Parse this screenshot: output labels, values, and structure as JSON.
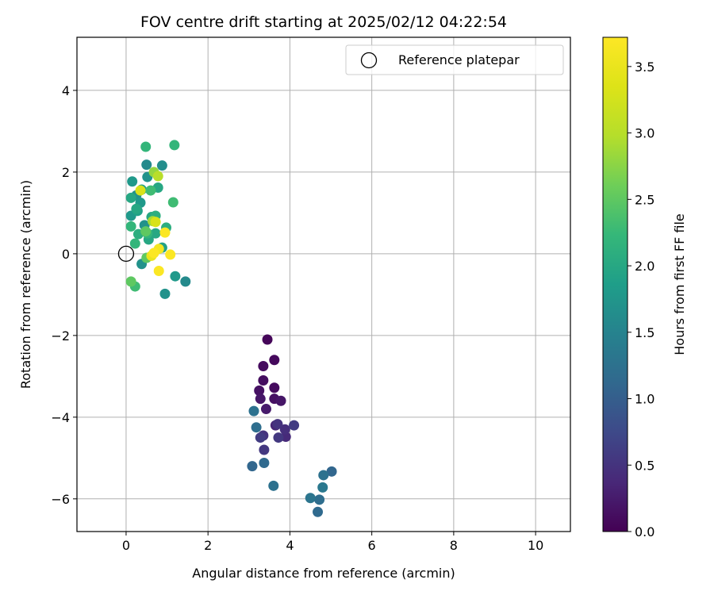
{
  "chart_data": {
    "type": "scatter",
    "title": "FOV centre drift starting at 2025/02/12 04:22:54",
    "xlabel": "Angular distance from reference (arcmin)",
    "ylabel": "Rotation from reference (arcmin)",
    "xlim": [
      -1.2,
      10.85
    ],
    "ylim": [
      -6.8,
      5.3
    ],
    "xticks": [
      0,
      2,
      4,
      6,
      8,
      10
    ],
    "yticks": [
      -6,
      -4,
      -2,
      0,
      2,
      4
    ],
    "xtick_labels": [
      "0",
      "2",
      "4",
      "6",
      "8",
      "10"
    ],
    "ytick_labels": [
      "−6",
      "−4",
      "−2",
      "0",
      "2",
      "4"
    ],
    "grid": true,
    "legend": {
      "position": "upper-right",
      "label": "Reference platepar"
    },
    "reference_point": {
      "x": 0,
      "y": 0
    },
    "colorbar": {
      "label": "Hours from first FF file",
      "colormap": "viridis",
      "range": [
        0,
        3.72
      ],
      "ticks": [
        0.0,
        0.5,
        1.0,
        1.5,
        2.0,
        2.5,
        3.0,
        3.5
      ],
      "tick_labels": [
        "0.0",
        "0.5",
        "1.0",
        "1.5",
        "2.0",
        "2.5",
        "3.0",
        "3.5"
      ]
    },
    "points": [
      {
        "x": 3.45,
        "y": -2.1,
        "c": 0.05
      },
      {
        "x": 3.62,
        "y": -2.6,
        "c": 0.08
      },
      {
        "x": 3.35,
        "y": -2.75,
        "c": 0.1
      },
      {
        "x": 3.35,
        "y": -3.1,
        "c": 0.12
      },
      {
        "x": 3.25,
        "y": -3.35,
        "c": 0.15
      },
      {
        "x": 3.62,
        "y": -3.28,
        "c": 0.1
      },
      {
        "x": 3.28,
        "y": -3.55,
        "c": 0.2
      },
      {
        "x": 3.62,
        "y": -3.55,
        "c": 0.15
      },
      {
        "x": 3.78,
        "y": -3.6,
        "c": 0.2
      },
      {
        "x": 3.42,
        "y": -3.8,
        "c": 0.25
      },
      {
        "x": 3.65,
        "y": -4.2,
        "c": 0.35
      },
      {
        "x": 3.7,
        "y": -4.17,
        "c": 0.5
      },
      {
        "x": 3.88,
        "y": -4.3,
        "c": 0.45
      },
      {
        "x": 4.1,
        "y": -4.2,
        "c": 0.6
      },
      {
        "x": 3.72,
        "y": -4.5,
        "c": 0.55
      },
      {
        "x": 3.9,
        "y": -4.48,
        "c": 0.4
      },
      {
        "x": 3.35,
        "y": -4.45,
        "c": 0.5
      },
      {
        "x": 3.28,
        "y": -4.5,
        "c": 0.6
      },
      {
        "x": 3.37,
        "y": -4.8,
        "c": 0.55
      },
      {
        "x": 3.18,
        "y": -4.25,
        "c": 1.2
      },
      {
        "x": 3.12,
        "y": -3.85,
        "c": 1.25
      },
      {
        "x": 3.37,
        "y": -5.12,
        "c": 1.15
      },
      {
        "x": 3.08,
        "y": -5.2,
        "c": 1.1
      },
      {
        "x": 3.6,
        "y": -5.68,
        "c": 1.25
      },
      {
        "x": 4.5,
        "y": -5.98,
        "c": 1.3
      },
      {
        "x": 4.72,
        "y": -6.02,
        "c": 1.2
      },
      {
        "x": 4.8,
        "y": -5.72,
        "c": 1.35
      },
      {
        "x": 4.82,
        "y": -5.42,
        "c": 1.25
      },
      {
        "x": 5.02,
        "y": -5.33,
        "c": 1.1
      },
      {
        "x": 4.68,
        "y": -6.32,
        "c": 1.15
      },
      {
        "x": 0.48,
        "y": 2.62,
        "c": 2.2
      },
      {
        "x": 1.18,
        "y": 2.66,
        "c": 2.2
      },
      {
        "x": 0.5,
        "y": 2.18,
        "c": 1.6
      },
      {
        "x": 0.88,
        "y": 2.16,
        "c": 1.65
      },
      {
        "x": 0.68,
        "y": 2.0,
        "c": 2.8
      },
      {
        "x": 0.78,
        "y": 1.9,
        "c": 3.0
      },
      {
        "x": 0.52,
        "y": 1.88,
        "c": 1.7
      },
      {
        "x": 0.15,
        "y": 1.77,
        "c": 1.8
      },
      {
        "x": 0.38,
        "y": 1.57,
        "c": 1.9
      },
      {
        "x": 0.35,
        "y": 1.55,
        "c": 3.3
      },
      {
        "x": 0.6,
        "y": 1.55,
        "c": 2.3
      },
      {
        "x": 0.78,
        "y": 1.62,
        "c": 2.0
      },
      {
        "x": 0.25,
        "y": 1.43,
        "c": 1.7
      },
      {
        "x": 0.12,
        "y": 1.37,
        "c": 2.0
      },
      {
        "x": 0.35,
        "y": 1.25,
        "c": 1.8
      },
      {
        "x": 1.15,
        "y": 1.26,
        "c": 2.3
      },
      {
        "x": 0.25,
        "y": 1.1,
        "c": 2.0
      },
      {
        "x": 0.12,
        "y": 0.93,
        "c": 1.8
      },
      {
        "x": 0.28,
        "y": 1.05,
        "c": 1.9
      },
      {
        "x": 0.62,
        "y": 0.9,
        "c": 2.0
      },
      {
        "x": 0.72,
        "y": 0.93,
        "c": 2.1
      },
      {
        "x": 0.65,
        "y": 0.8,
        "c": 2.9
      },
      {
        "x": 0.72,
        "y": 0.78,
        "c": 3.3
      },
      {
        "x": 0.12,
        "y": 0.67,
        "c": 2.2
      },
      {
        "x": 0.45,
        "y": 0.7,
        "c": 1.7
      },
      {
        "x": 0.98,
        "y": 0.64,
        "c": 2.1
      },
      {
        "x": 0.48,
        "y": 0.55,
        "c": 2.5
      },
      {
        "x": 0.52,
        "y": 0.5,
        "c": 2.2
      },
      {
        "x": 0.72,
        "y": 0.5,
        "c": 2.0
      },
      {
        "x": 0.3,
        "y": 0.48,
        "c": 2.1
      },
      {
        "x": 0.95,
        "y": 0.52,
        "c": 3.7
      },
      {
        "x": 0.55,
        "y": 0.35,
        "c": 2.0
      },
      {
        "x": 0.22,
        "y": 0.25,
        "c": 2.2
      },
      {
        "x": 0.88,
        "y": 0.15,
        "c": 1.9
      },
      {
        "x": 0.8,
        "y": 0.12,
        "c": 3.6
      },
      {
        "x": 0.68,
        "y": 0.02,
        "c": 3.7
      },
      {
        "x": 0.62,
        "y": -0.05,
        "c": 3.5
      },
      {
        "x": 1.08,
        "y": -0.02,
        "c": 3.7
      },
      {
        "x": 0.5,
        "y": -0.1,
        "c": 2.5
      },
      {
        "x": 0.38,
        "y": -0.25,
        "c": 1.7
      },
      {
        "x": 0.8,
        "y": -0.42,
        "c": 3.7
      },
      {
        "x": 1.2,
        "y": -0.55,
        "c": 1.8
      },
      {
        "x": 1.45,
        "y": -0.68,
        "c": 1.6
      },
      {
        "x": 0.12,
        "y": -0.68,
        "c": 2.5
      },
      {
        "x": 0.22,
        "y": -0.8,
        "c": 2.3
      },
      {
        "x": 0.95,
        "y": -0.98,
        "c": 1.7
      }
    ]
  }
}
